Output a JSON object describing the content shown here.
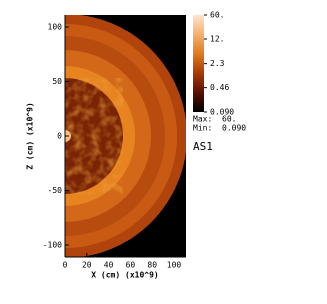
{
  "chart_data": {
    "type": "pseudocolor",
    "xlabel": "X (cm) (x10^9)",
    "ylabel": "Z (cm) (x10^9)",
    "xlim": [
      0,
      111
    ],
    "ylim": [
      -111,
      111
    ],
    "xticks": [
      0,
      20,
      40,
      60,
      80,
      100
    ],
    "yticks": [
      -100,
      -50,
      0,
      50,
      100
    ],
    "colorbar": {
      "scale": "log",
      "lim": [
        0.09,
        60
      ],
      "ticks": [
        {
          "value": 60,
          "label": "60."
        },
        {
          "value": 12,
          "label": "12."
        },
        2.3,
        0.46,
        {
          "value": 0.09,
          "label": "0.090"
        }
      ],
      "colormap": [
        "#000000",
        "#5a0f00",
        "#a83a06",
        "#e07a1c",
        "#f7b070",
        "#fde4cc"
      ]
    },
    "max_label": "Max:",
    "max_value": "60.",
    "min_label": "Min:",
    "min_value": "0.090",
    "run_label": "AS1"
  }
}
